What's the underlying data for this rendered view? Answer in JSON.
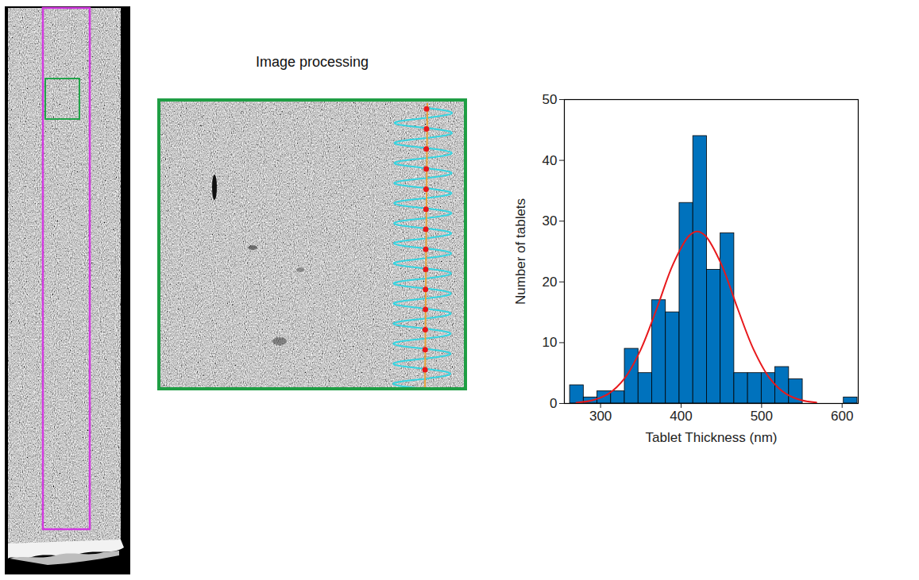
{
  "chart_data": {
    "type": "histogram",
    "xlabel": "Tablet Thickness (nm)",
    "ylabel": "Number of tablets",
    "bins": [
      262,
      279,
      296,
      313,
      330,
      347,
      364,
      381,
      398,
      415,
      432,
      449,
      466,
      483,
      500,
      517,
      534,
      551,
      568,
      585,
      602,
      619
    ],
    "values": [
      3,
      1,
      2,
      2,
      9,
      5,
      17,
      15,
      33,
      44,
      22,
      28,
      5,
      5,
      5,
      6,
      4,
      0,
      0,
      0,
      1
    ],
    "color": "#0072bd",
    "xlim": [
      255,
      620
    ],
    "xticks": [
      300,
      400,
      500,
      600
    ],
    "ylim": [
      0,
      50
    ],
    "yticks": [
      0,
      10,
      20,
      30,
      40,
      50
    ],
    "series": [
      {
        "type": "line",
        "color": "#e8191c",
        "x": [
          270,
          290,
          310,
          330,
          350,
          370,
          390,
          410,
          420,
          430,
          450,
          470,
          490,
          510,
          530,
          550,
          568
        ],
        "values": [
          0.14,
          0.52,
          1.62,
          4.17,
          8.9,
          15.7,
          22.9,
          27.6,
          28.3,
          27.6,
          22.9,
          15.7,
          8.9,
          4.17,
          1.62,
          0.52,
          0.16
        ]
      }
    ]
  },
  "figure": {
    "panel_title": "Image processing"
  }
}
